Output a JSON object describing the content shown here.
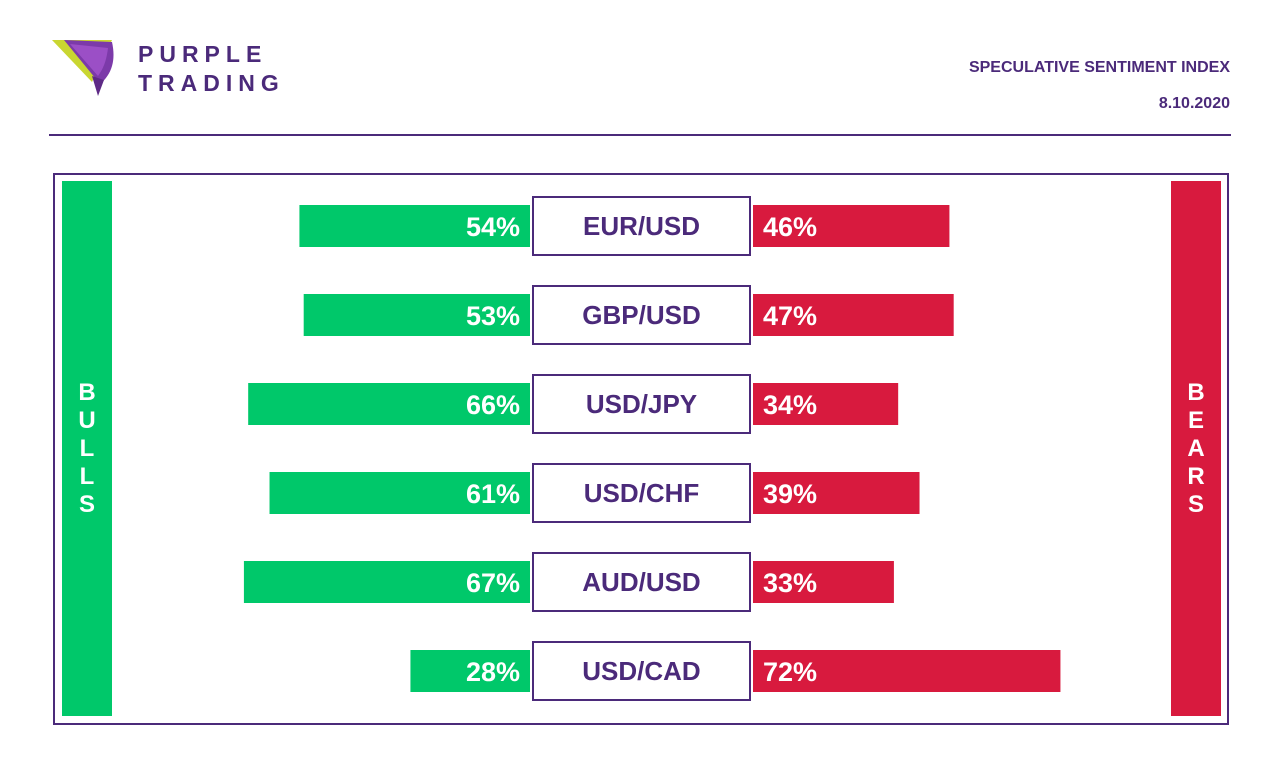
{
  "brand": {
    "line1": "PURPLE",
    "line2": "TRADING"
  },
  "header": {
    "title": "SPECULATIVE SENTIMENT INDEX",
    "date": "8.10.2020"
  },
  "labels": {
    "bulls": "BULLS",
    "bears": "BEARS"
  },
  "colors": {
    "bulls": "#00c86a",
    "bears": "#d81a3e",
    "accent": "#4b2a7a"
  },
  "chart_data": {
    "type": "bar",
    "title": "SPECULATIVE SENTIMENT INDEX",
    "categories": [
      "EUR/USD",
      "GBP/USD",
      "USD/JPY",
      "USD/CHF",
      "AUD/USD",
      "USD/CAD"
    ],
    "series": [
      {
        "name": "BULLS",
        "values": [
          54,
          53,
          66,
          61,
          67,
          28
        ]
      },
      {
        "name": "BEARS",
        "values": [
          46,
          47,
          34,
          39,
          33,
          72
        ]
      }
    ],
    "unit": "%",
    "layout": "diverging horizontal bars"
  }
}
